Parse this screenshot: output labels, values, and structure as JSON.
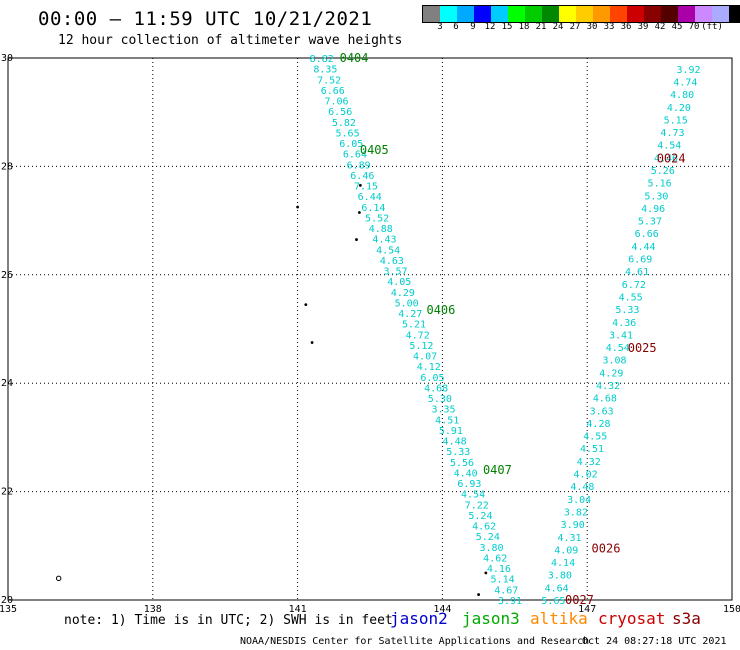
{
  "header": {
    "title": "00:00 – 11:59 UTC 10/21/2021",
    "subtitle": "12 hour collection of altimeter wave heights"
  },
  "colorbar": {
    "colors": [
      "#808080",
      "#00ffff",
      "#00aaff",
      "#0000ff",
      "#00ccff",
      "#00ff00",
      "#00cc00",
      "#008800",
      "#ffff00",
      "#ffcc00",
      "#ff9900",
      "#ff4400",
      "#cc0000",
      "#880000",
      "#550000",
      "#aa00aa",
      "#cc88ff",
      "#aaaaff",
      "#000000"
    ],
    "labels": [
      "3",
      "6",
      "9",
      "12",
      "15",
      "18",
      "21",
      "24",
      "27",
      "30",
      "33",
      "36",
      "39",
      "42",
      "45",
      "70",
      "(ft)"
    ]
  },
  "axes": {
    "lon_ticks": [
      "135",
      "138",
      "141",
      "144",
      "147",
      "150"
    ],
    "lat_ticks": [
      "30",
      "28",
      "26",
      "24",
      "22",
      "20"
    ],
    "lon_range": [
      135,
      150
    ],
    "lat_range": [
      20,
      30
    ]
  },
  "tracks": [
    {
      "satellite": "jason3",
      "label_color": "#008000",
      "value_color": "#00cccc",
      "start": [
        141.5,
        30.0
      ],
      "end": [
        145.4,
        20.0
      ],
      "values": [
        "8.82",
        "8.35",
        "7.52",
        "6.66",
        "7.06",
        "6.56",
        "5.82",
        "5.65",
        "6.05",
        "6.64",
        "6.89",
        "6.46",
        "7.15",
        "6.44",
        "6.14",
        "5.52",
        "4.88",
        "4.43",
        "4.54",
        "4.63",
        "3.57",
        "4.05",
        "4.29",
        "5.00",
        "4.27",
        "5.21",
        "4.72",
        "5.12",
        "4.07",
        "4.12",
        "6.05",
        "4.68",
        "5.30",
        "3.35",
        "4.51",
        "5.91",
        "4.48",
        "5.33",
        "5.56",
        "4.40",
        "6.93",
        "4.54",
        "7.22",
        "5.24",
        "4.62",
        "5.24",
        "3.80",
        "4.62",
        "4.16",
        "5.14",
        "4.67",
        "3.91"
      ],
      "passes": [
        {
          "name": "0404",
          "lon": 141.58,
          "lat": 30.0
        },
        {
          "name": "0405",
          "lon": 142.0,
          "lat": 28.3
        },
        {
          "name": "0406",
          "lon": 143.38,
          "lat": 25.35
        },
        {
          "name": "0407",
          "lon": 144.55,
          "lat": 22.4
        }
      ]
    },
    {
      "satellite": "cryosat",
      "label_color": "#880000",
      "value_color": "#00cccc",
      "start": [
        149.1,
        29.8
      ],
      "end": [
        146.3,
        20.0
      ],
      "values": [
        "3.92",
        "4.74",
        "4.80",
        "4.20",
        "5.15",
        "4.73",
        "4.54",
        "4.46",
        "5.26",
        "5.16",
        "5.30",
        "4.96",
        "5.37",
        "6.66",
        "4.44",
        "6.69",
        "4.61",
        "6.72",
        "4.55",
        "5.33",
        "4.36",
        "3.41",
        "4.54",
        "3.08",
        "4.29",
        "4.32",
        "4.68",
        "3.63",
        "4.28",
        "4.55",
        "4.51",
        "4.32",
        "4.02",
        "4.48",
        "3.04",
        "3.82",
        "3.90",
        "4.31",
        "4.09",
        "4.14",
        "3.80",
        "4.64",
        "5.65"
      ],
      "passes": [
        {
          "name": "0024",
          "lon": 148.15,
          "lat": 28.15
        },
        {
          "name": "0025",
          "lon": 147.55,
          "lat": 24.65
        },
        {
          "name": "0026",
          "lon": 146.8,
          "lat": 20.95
        },
        {
          "name": "0027",
          "lon": 146.25,
          "lat": 20.0
        }
      ]
    }
  ],
  "islands": [
    [
      141.17,
      25.45
    ],
    [
      141.3,
      24.75
    ],
    [
      142.3,
      27.65
    ],
    [
      142.28,
      27.15
    ],
    [
      142.22,
      26.65
    ],
    [
      141.0,
      27.25
    ],
    [
      144.9,
      20.5
    ],
    [
      144.75,
      20.1
    ],
    [
      136.05,
      20.4
    ]
  ],
  "footer": {
    "note": "note: 1) Time is in UTC; 2) SWH is in feet",
    "credit": "NOAA/NESDIS Center for Satellite Applications and Research",
    "timestamp": "Oct 24 08:27:18 UTC 2021"
  },
  "legend": [
    {
      "name": "jason2",
      "color": "#0000cc"
    },
    {
      "name": "jason3",
      "color": "#00aa00"
    },
    {
      "name": "altika",
      "color": "#ff8800"
    },
    {
      "name": "cryosat",
      "color": "#cc0000"
    },
    {
      "name": "s3a",
      "color": "#880000"
    }
  ]
}
